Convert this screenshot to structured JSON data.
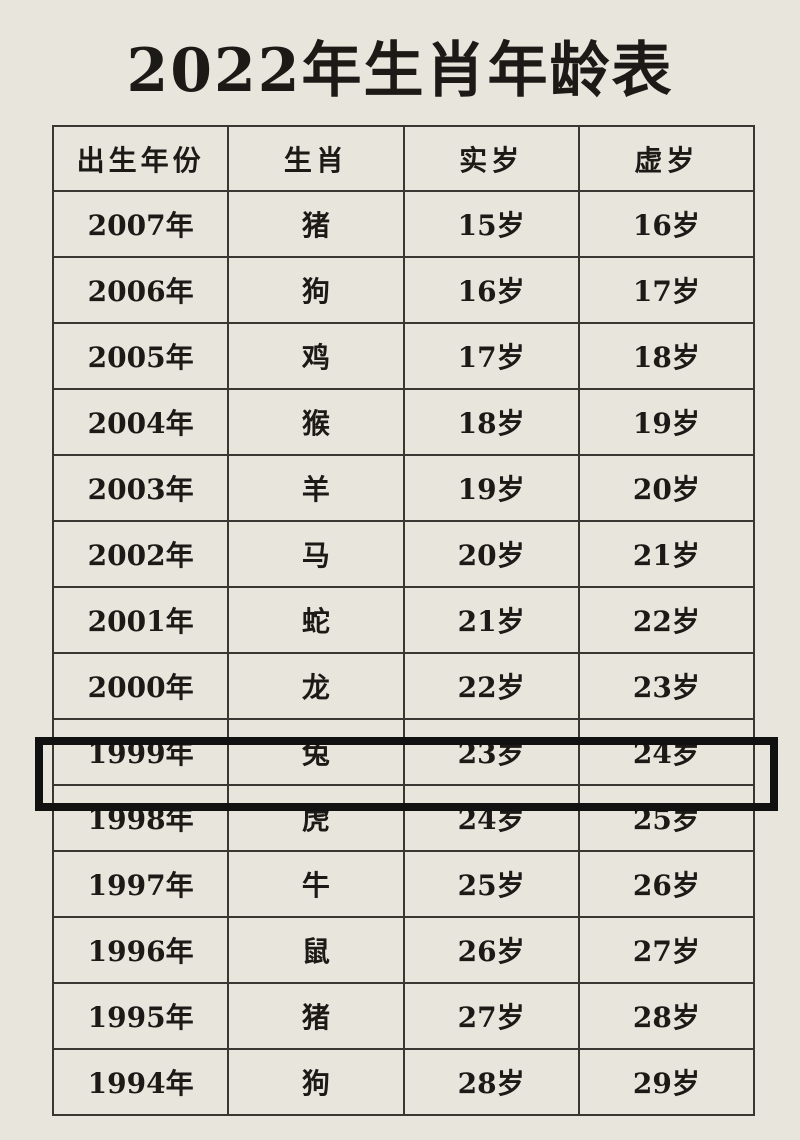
{
  "title": "2022年生肖年龄表",
  "headers": [
    "出生年份",
    "生肖",
    "实岁",
    "虚岁"
  ],
  "rows": [
    [
      "2007年",
      "猪",
      "15岁",
      "16岁"
    ],
    [
      "2006年",
      "狗",
      "16岁",
      "17岁"
    ],
    [
      "2005年",
      "鸡",
      "17岁",
      "18岁"
    ],
    [
      "2004年",
      "猴",
      "18岁",
      "19岁"
    ],
    [
      "2003年",
      "羊",
      "19岁",
      "20岁"
    ],
    [
      "2002年",
      "马",
      "20岁",
      "21岁"
    ],
    [
      "2001年",
      "蛇",
      "21岁",
      "22岁"
    ],
    [
      "2000年",
      "龙",
      "22岁",
      "23岁"
    ],
    [
      "1999年",
      "兔",
      "23岁",
      "24岁"
    ],
    [
      "1998年",
      "虎",
      "24岁",
      "25岁"
    ],
    [
      "1997年",
      "牛",
      "25岁",
      "26岁"
    ],
    [
      "1996年",
      "鼠",
      "26岁",
      "27岁"
    ],
    [
      "1995年",
      "猪",
      "27岁",
      "28岁"
    ],
    [
      "1994年",
      "狗",
      "28岁",
      "29岁"
    ]
  ],
  "highlighted_row": "1999年"
}
